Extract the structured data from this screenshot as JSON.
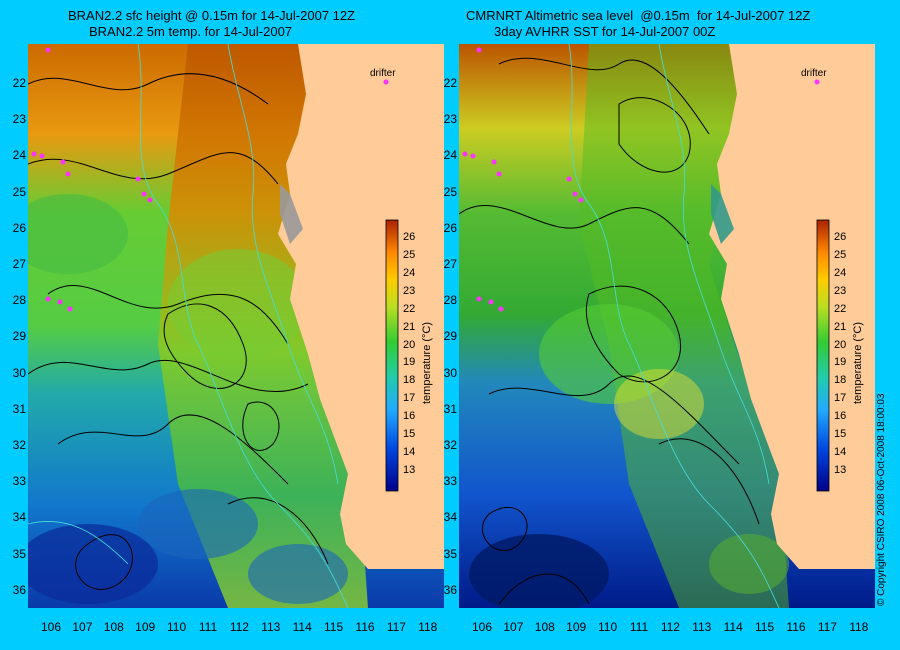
{
  "left": {
    "title_line1": "BRAN2.2 sfc height @ 0.15m for 14-Jul-2007 12Z",
    "title_line2": "BRAN2.2 5m temp. for 14-Jul-2007",
    "drifter_label": "drifter",
    "colorbar_title": "temperature (°C)"
  },
  "right": {
    "title_line1": "CMRNRT Altimetric sea level  @0.15m  for 14-Jul-2007 12Z",
    "title_line2": "3day AVHRR SST for 14-Jul-2007 00Z",
    "drifter_label": "drifter",
    "colorbar_title": "temperature (°C)"
  },
  "lat_ticks": [
    "22",
    "23",
    "24",
    "25",
    "26",
    "27",
    "28",
    "29",
    "30",
    "31",
    "32",
    "33",
    "34",
    "35",
    "36"
  ],
  "lon_ticks": [
    "106",
    "107",
    "108",
    "109",
    "110",
    "111",
    "112",
    "113",
    "114",
    "115",
    "116",
    "117",
    "118"
  ],
  "colorbar_ticks": [
    "26",
    "25",
    "24",
    "23",
    "22",
    "21",
    "20",
    "19",
    "18",
    "17",
    "16",
    "15",
    "14",
    "13"
  ],
  "copyright": "© Copyright CSIRO 2008    06-Oct-2008 18:00:03",
  "colors": {
    "background": "#00ccff",
    "land": "#ffcc99",
    "contour": "#000000",
    "bathymetry": "#44dddd",
    "drifter": "#ff33ff"
  }
}
